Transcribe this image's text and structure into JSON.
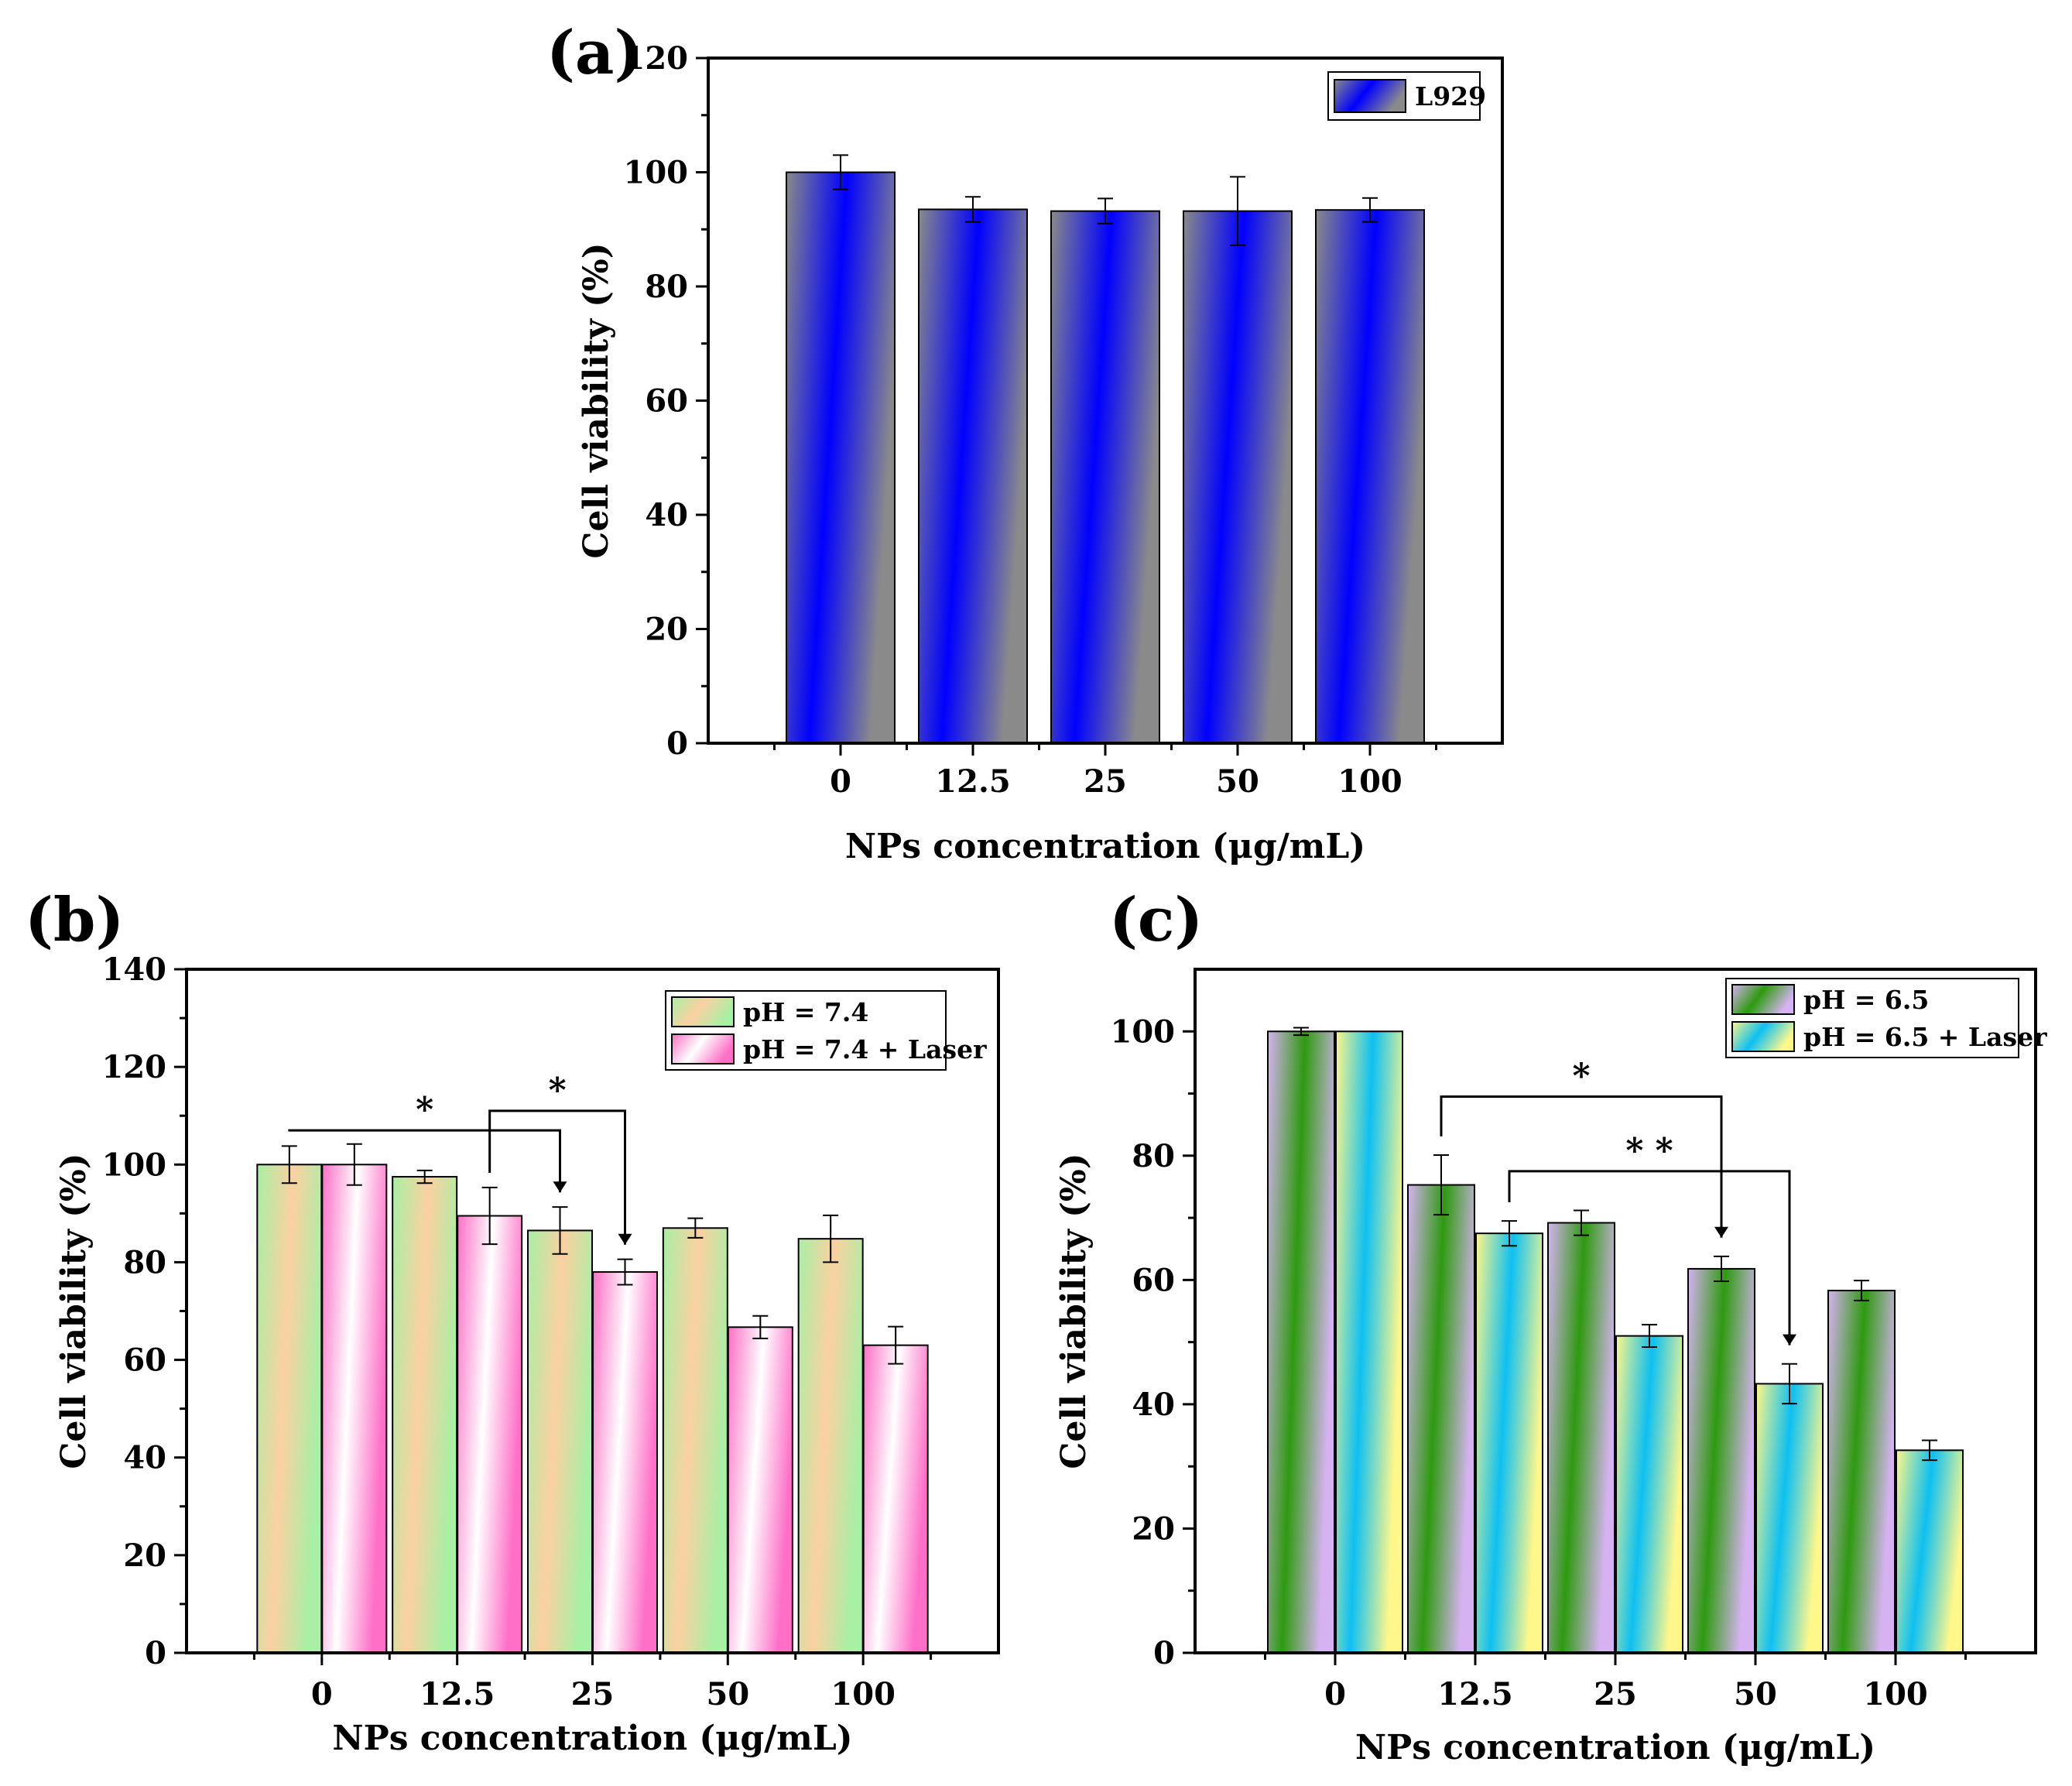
{
  "chart_data": [
    {
      "id": "a",
      "type": "bar",
      "panel_label": "(a)",
      "xlabel": "NPs concentration (μg/mL)",
      "ylabel": "Cell viability (%)",
      "categories": [
        "0",
        "12.5",
        "25",
        "50",
        "100"
      ],
      "ylim": [
        0,
        120
      ],
      "yticks": [
        0,
        20,
        40,
        60,
        80,
        100,
        120
      ],
      "legend_position": "top-right",
      "series": [
        {
          "name": "L929",
          "values": [
            100,
            93.5,
            93.2,
            93.2,
            93.4
          ],
          "errors": [
            3,
            2.2,
            2.2,
            6,
            2.1
          ],
          "colors": [
            "#0000ff",
            "#8a8a8a"
          ]
        }
      ],
      "significance": []
    },
    {
      "id": "b",
      "type": "bar",
      "panel_label": "(b)",
      "xlabel": "NPs concentration (μg/mL)",
      "ylabel": "Cell viability (%)",
      "categories": [
        "0",
        "12.5",
        "25",
        "50",
        "100"
      ],
      "ylim": [
        0,
        140
      ],
      "yticks": [
        0,
        20,
        40,
        60,
        80,
        100,
        120,
        140
      ],
      "legend_position": "top-right",
      "series": [
        {
          "name": "pH = 7.4",
          "values": [
            100,
            97.5,
            86.5,
            87,
            84.8
          ],
          "errors": [
            3.8,
            1.3,
            4.8,
            2,
            4.8
          ],
          "colors": [
            "#a8f0a4",
            "#fbd0a2"
          ]
        },
        {
          "name": "pH = 7.4 + Laser",
          "values": [
            100,
            89.5,
            78,
            66.7,
            63
          ],
          "errors": [
            4.2,
            5.8,
            2.6,
            2.3,
            3.8
          ],
          "colors": [
            "#ff6ec7",
            "#ffffff"
          ]
        }
      ],
      "significance": [
        {
          "from": [
            0,
            0
          ],
          "to": [
            2,
            0
          ],
          "label": "*",
          "y": 107
        },
        {
          "from": [
            1,
            1
          ],
          "to": [
            2,
            1
          ],
          "label": "*",
          "y": 111
        }
      ]
    },
    {
      "id": "c",
      "type": "bar",
      "panel_label": "(c)",
      "xlabel": "NPs concentration (μg/mL)",
      "ylabel": "Cell viability (%)",
      "categories": [
        "0",
        "12.5",
        "25",
        "50",
        "100"
      ],
      "ylim": [
        0,
        110
      ],
      "yticks": [
        0,
        20,
        40,
        60,
        80,
        100
      ],
      "legend_position": "top-right",
      "series": [
        {
          "name": "pH = 6.5",
          "values": [
            100,
            75.3,
            69.2,
            61.8,
            58.3
          ],
          "errors": [
            0.6,
            4.8,
            2,
            2,
            1.6
          ],
          "colors": [
            "#d6b2f2",
            "#2e9a10"
          ]
        },
        {
          "name": "pH = 6.5 + Laser",
          "values": [
            100,
            67.5,
            51,
            43.3,
            32.6
          ],
          "errors": [
            0,
            2,
            1.8,
            3.2,
            1.6
          ],
          "colors": [
            "#fff78a",
            "#0cc0f2"
          ]
        }
      ],
      "significance": [
        {
          "from": [
            1,
            0
          ],
          "to": [
            3,
            0
          ],
          "label": "*",
          "y": 89.5
        },
        {
          "from": [
            1,
            1
          ],
          "to": [
            3,
            1
          ],
          "label": "* *",
          "y": 77.5
        }
      ]
    }
  ]
}
